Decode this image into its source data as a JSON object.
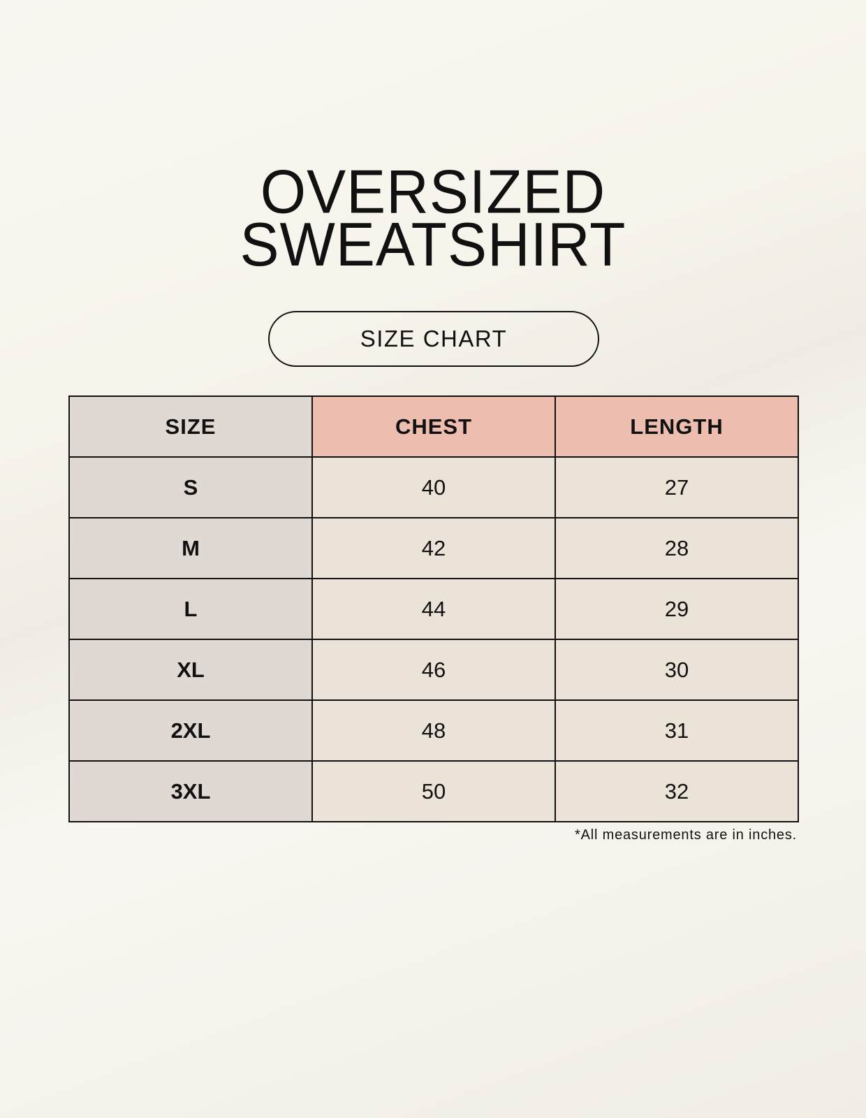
{
  "title": {
    "line1": "OVERSIZED",
    "line2": "SWEATSHIRT"
  },
  "badge": "SIZE CHART",
  "table": {
    "headers": [
      "SIZE",
      "CHEST",
      "LENGTH"
    ],
    "rows": [
      [
        "S",
        "40",
        "27"
      ],
      [
        "M",
        "42",
        "28"
      ],
      [
        "L",
        "44",
        "29"
      ],
      [
        "XL",
        "46",
        "30"
      ],
      [
        "2XL",
        "48",
        "31"
      ],
      [
        "3XL",
        "50",
        "32"
      ]
    ]
  },
  "note": "*All measurements are in inches.",
  "colors": {
    "size_column": "#e0d8d3",
    "header_accent": "#edbdb0",
    "value_cells": "#ebe2d8"
  }
}
